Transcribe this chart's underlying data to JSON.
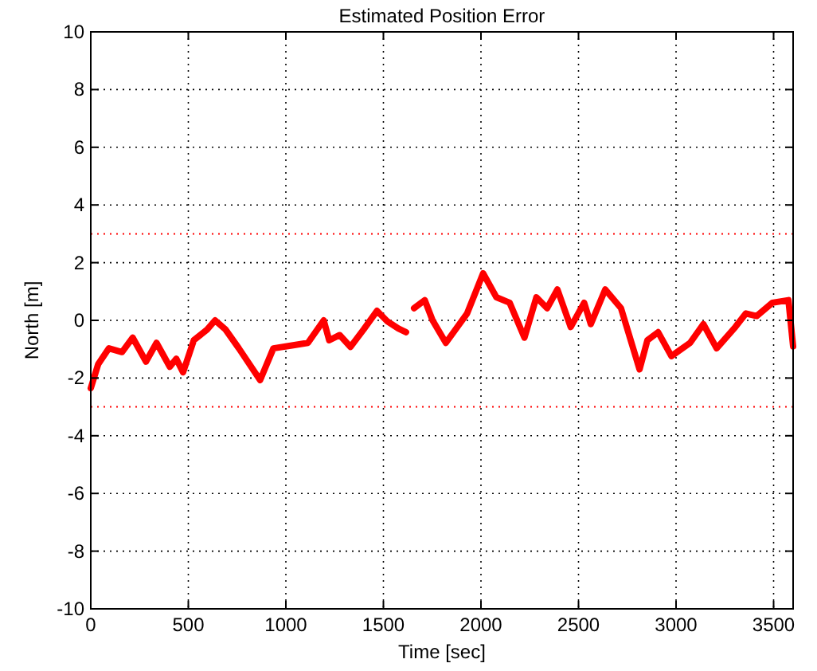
{
  "chart_data": {
    "type": "line",
    "title": "Estimated Position Error",
    "xlabel": "Time [sec]",
    "ylabel": "North [m]",
    "xlim": [
      0,
      3600
    ],
    "xticks": [
      0,
      500,
      1000,
      1500,
      2000,
      2500,
      3000,
      3500
    ],
    "ylim": [
      -10,
      10
    ],
    "yticks": [
      -10,
      -8,
      -6,
      -4,
      -2,
      0,
      2,
      4,
      6,
      8,
      10
    ],
    "grid": true,
    "line_style": "solid",
    "marker": "none",
    "ref_lines": [
      {
        "axis": "y",
        "value": 3,
        "color": "#ff0000",
        "line_style": "dotted"
      },
      {
        "axis": "y",
        "value": -3,
        "color": "#ff0000",
        "line_style": "dotted"
      }
    ],
    "series": [
      {
        "color": "#ff0000",
        "x": [
          0,
          38,
          93,
          160,
          215,
          283,
          337,
          405,
          438,
          473,
          528,
          596,
          637,
          691,
          759,
          868,
          936,
          1031,
          1113,
          1194,
          1222,
          1276,
          1331,
          1398,
          1467,
          1521,
          1576,
          1616,
          1636,
          1657,
          1712,
          1752,
          1820,
          1929,
          2011,
          2079,
          2147,
          2223,
          2284,
          2339,
          2392,
          2460,
          2529,
          2563,
          2637,
          2718,
          2813,
          2853,
          2908,
          2976,
          3072,
          3140,
          3208,
          3304,
          3358,
          3413,
          3494,
          3576,
          3600
        ],
        "values": [
          -2.35,
          -1.52,
          -0.97,
          -1.1,
          -0.6,
          -1.43,
          -0.78,
          -1.61,
          -1.33,
          -1.8,
          -0.69,
          -0.32,
          0,
          -0.32,
          -0.97,
          -2.07,
          -0.97,
          -0.87,
          -0.78,
          0,
          -0.69,
          -0.51,
          -0.92,
          -0.32,
          0.33,
          -0.04,
          -0.28,
          -0.41,
          null,
          0.42,
          0.7,
          0,
          -0.78,
          0.24,
          1.63,
          0.8,
          0.61,
          -0.6,
          0.8,
          0.42,
          1.07,
          -0.23,
          0.61,
          -0.13,
          1.07,
          0.42,
          -1.7,
          -0.69,
          -0.41,
          -1.24,
          -0.78,
          -0.13,
          -0.97,
          -0.23,
          0.24,
          0.15,
          0.61,
          0.7,
          -0.9
        ]
      }
    ]
  }
}
